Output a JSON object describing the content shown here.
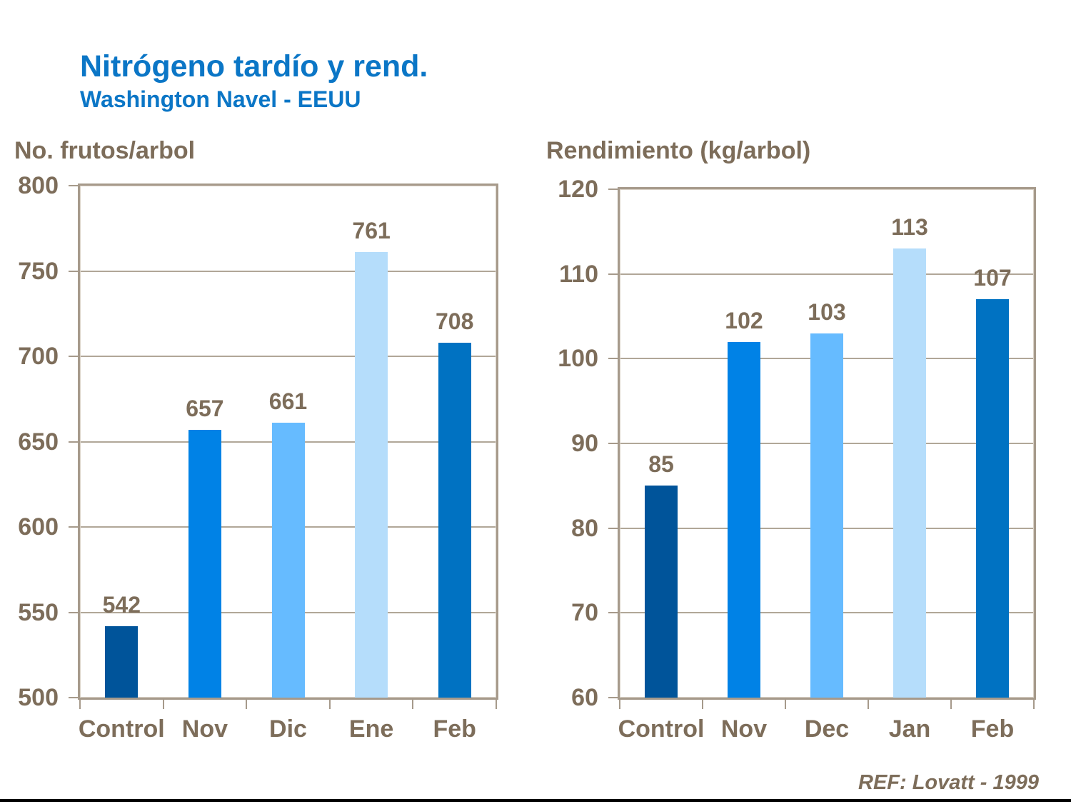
{
  "page": {
    "title": "Nitrógeno tardío y rend.",
    "subtitle": "Washington Navel - EEUU",
    "reference": "REF: Lovatt - 1999"
  },
  "colors": {
    "title_blue": "#0b76c6",
    "chart_text": "#7d6d5a",
    "frame": "#a69a8b",
    "gridline": "#b1a798"
  },
  "chart_data": [
    {
      "type": "bar",
      "title": "No. frutos/arbol",
      "categories": [
        "Control",
        "Nov",
        "Dic",
        "Ene",
        "Feb"
      ],
      "values": [
        542,
        657,
        661,
        761,
        708
      ],
      "ylim": [
        500,
        800
      ],
      "ytick_step": 50,
      "grid": true,
      "legend": "none",
      "bar_colors": [
        "#00549a",
        "#0082e6",
        "#66bbff",
        "#b5ddfb",
        "#0072c2"
      ]
    },
    {
      "type": "bar",
      "title": "Rendimiento (kg/arbol)",
      "categories": [
        "Control",
        "Nov",
        "Dec",
        "Jan",
        "Feb"
      ],
      "values": [
        85,
        102,
        103,
        113,
        107
      ],
      "ylim": [
        60,
        120
      ],
      "ytick_step": 10,
      "grid": true,
      "legend": "none",
      "bar_colors": [
        "#00549a",
        "#0082e6",
        "#66bbff",
        "#b5ddfb",
        "#0072c2"
      ]
    }
  ]
}
